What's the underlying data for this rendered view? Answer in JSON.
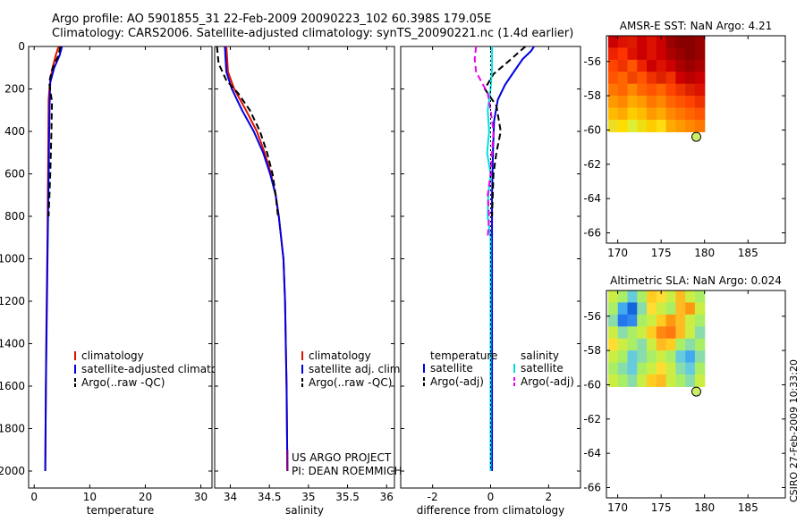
{
  "header": {
    "line1": "Argo profile: AO 5901855_31 22-Feb-2009 20090223_102 60.398S 179.05E",
    "line2": "Climatology: CARS2006. Satellite-adjusted climatology: synTS_20090221.nc (1.4d earlier)"
  },
  "credit": "CSIRO 27-Feb-2009 10:33:20",
  "colors": {
    "red": "#dd1100",
    "blue": "#0000e0",
    "black": "#000000",
    "cyan": "#00e0e0",
    "magenta": "#ee00ee",
    "purple": "#800080",
    "marker": "#ccee66"
  },
  "chart_data": [
    {
      "type": "line",
      "id": "temperature",
      "xlabel": "temperature",
      "xlim": [
        -1,
        32
      ],
      "ylim": [
        2080,
        0
      ],
      "xticks": [
        0,
        10,
        20,
        30
      ],
      "xtick_labels": [
        "0",
        "10",
        "20",
        "30"
      ],
      "yticks": [
        0,
        200,
        400,
        600,
        800,
        1000,
        1200,
        1400,
        1600,
        1800,
        2000
      ],
      "ytick_labels": [
        "0",
        "200",
        "400",
        "600",
        "800",
        "1000",
        "1200",
        "1400",
        "1600",
        "1800",
        "2000"
      ],
      "legend": [
        "climatology",
        "satellite-adjusted climatology",
        "Argo(..raw -QC)"
      ],
      "series": [
        {
          "name": "climatology",
          "color": "red",
          "style": "solid",
          "points": [
            [
              4.4,
              0
            ],
            [
              3.9,
              40
            ],
            [
              3.3,
              100
            ],
            [
              2.8,
              180
            ],
            [
              2.6,
              250
            ],
            [
              2.55,
              400
            ],
            [
              2.5,
              600
            ],
            [
              2.4,
              900
            ],
            [
              2.2,
              1300
            ],
            [
              2.1,
              1600
            ],
            [
              2.0,
              2000
            ]
          ]
        },
        {
          "name": "satellite-adjusted climatology",
          "color": "blue",
          "style": "solid",
          "points": [
            [
              5.0,
              0
            ],
            [
              4.6,
              40
            ],
            [
              3.6,
              100
            ],
            [
              2.9,
              170
            ],
            [
              2.8,
              250
            ],
            [
              2.7,
              400
            ],
            [
              2.6,
              600
            ],
            [
              2.45,
              900
            ],
            [
              2.25,
              1300
            ],
            [
              2.1,
              1600
            ],
            [
              2.0,
              2000
            ]
          ]
        },
        {
          "name": "Argo(..raw -QC)",
          "color": "black",
          "style": "dashed",
          "points": [
            [
              4.7,
              0
            ],
            [
              4.4,
              40
            ],
            [
              3.2,
              110
            ],
            [
              2.7,
              170
            ],
            [
              3.2,
              260
            ],
            [
              3.1,
              400
            ],
            [
              2.9,
              600
            ],
            [
              2.6,
              800
            ]
          ]
        }
      ]
    },
    {
      "type": "line",
      "id": "salinity",
      "xlabel": "salinity",
      "xlim": [
        33.8,
        36.1
      ],
      "ylim": [
        2080,
        0
      ],
      "xticks": [
        34,
        34.5,
        35,
        35.5,
        36
      ],
      "xtick_labels": [
        "34",
        "34.5",
        "35",
        "35.5",
        "36"
      ],
      "legend": [
        "climatology",
        "satellite adj. clim.",
        "Argo(..raw -QC)"
      ],
      "annotations": [
        "US ARGO PROJECT",
        "PI: DEAN ROEMMICH"
      ],
      "series": [
        {
          "name": "climatology",
          "color": "red",
          "style": "solid",
          "points": [
            [
              33.95,
              0
            ],
            [
              33.96,
              60
            ],
            [
              33.97,
              120
            ],
            [
              34.05,
              200
            ],
            [
              34.2,
              300
            ],
            [
              34.34,
              400
            ],
            [
              34.44,
              500
            ],
            [
              34.52,
              600
            ],
            [
              34.58,
              700
            ],
            [
              34.62,
              800
            ],
            [
              34.65,
              900
            ],
            [
              34.68,
              1000
            ],
            [
              34.7,
              1200
            ],
            [
              34.71,
              1400
            ],
            [
              34.72,
              1600
            ],
            [
              34.73,
              2000
            ]
          ]
        },
        {
          "name": "satellite adj. clim.",
          "color": "blue",
          "style": "solid",
          "points": [
            [
              33.93,
              0
            ],
            [
              33.94,
              60
            ],
            [
              33.95,
              120
            ],
            [
              34.02,
              200
            ],
            [
              34.15,
              300
            ],
            [
              34.3,
              400
            ],
            [
              34.42,
              500
            ],
            [
              34.51,
              600
            ],
            [
              34.58,
              700
            ],
            [
              34.62,
              800
            ],
            [
              34.65,
              900
            ],
            [
              34.68,
              1000
            ],
            [
              34.7,
              1200
            ],
            [
              34.71,
              1400
            ],
            [
              34.72,
              1600
            ],
            [
              34.73,
              2000
            ]
          ]
        },
        {
          "name": "Argo(..raw -QC)",
          "color": "black",
          "style": "dashed",
          "points": [
            [
              33.83,
              0
            ],
            [
              33.85,
              80
            ],
            [
              33.95,
              160
            ],
            [
              34.1,
              220
            ],
            [
              34.25,
              300
            ],
            [
              34.38,
              400
            ],
            [
              34.47,
              500
            ],
            [
              34.54,
              600
            ],
            [
              34.58,
              700
            ],
            [
              34.61,
              800
            ]
          ]
        },
        {
          "name": "Argo(-adj)",
          "color": "purple",
          "style": "solid",
          "points": [
            [
              34.73,
              1900
            ],
            [
              34.73,
              2000
            ]
          ]
        }
      ]
    },
    {
      "type": "line",
      "id": "difference",
      "xlabel": "difference from climatology",
      "xlim": [
        -3.1,
        3.1
      ],
      "ylim": [
        2080,
        0
      ],
      "xticks": [
        -2,
        0,
        2
      ],
      "xtick_labels": [
        "-2",
        "0",
        "2"
      ],
      "legend_temperature": {
        "title": "temperature",
        "items": [
          "satellite",
          "Argo(-adj)"
        ]
      },
      "legend_salinity": {
        "title": "salinity",
        "items": [
          "satellite",
          "Argo(-adj)"
        ]
      },
      "series": [
        {
          "name": "temperature satellite",
          "color": "blue",
          "style": "solid",
          "points": [
            [
              1.5,
              0
            ],
            [
              1.4,
              20
            ],
            [
              1.1,
              60
            ],
            [
              0.8,
              120
            ],
            [
              0.5,
              180
            ],
            [
              0.25,
              250
            ],
            [
              0.12,
              350
            ],
            [
              0.08,
              500
            ],
            [
              0.05,
              700
            ],
            [
              0.05,
              1000
            ],
            [
              0.05,
              1500
            ],
            [
              0.05,
              2000
            ]
          ]
        },
        {
          "name": "temperature Argo(-adj)",
          "color": "black",
          "style": "dashed",
          "points": [
            [
              1.2,
              0
            ],
            [
              0.7,
              60
            ],
            [
              0.1,
              130
            ],
            [
              -0.2,
              200
            ],
            [
              0.2,
              280
            ],
            [
              0.35,
              400
            ],
            [
              0.2,
              500
            ],
            [
              0.1,
              600
            ],
            [
              0.05,
              800
            ]
          ]
        },
        {
          "name": "salinity satellite",
          "color": "cyan",
          "style": "solid",
          "points": [
            [
              0.05,
              0
            ],
            [
              0.05,
              100
            ],
            [
              0.0,
              200
            ],
            [
              -0.1,
              300
            ],
            [
              -0.05,
              400
            ],
            [
              -0.12,
              500
            ],
            [
              0.0,
              600
            ],
            [
              -0.08,
              700
            ],
            [
              -0.1,
              800
            ],
            [
              0.0,
              900
            ],
            [
              0.0,
              1200
            ],
            [
              0.0,
              1600
            ],
            [
              0.0,
              2000
            ]
          ]
        },
        {
          "name": "salinity Argo(-adj)",
          "color": "magenta",
          "style": "dashed",
          "points": [
            [
              -0.5,
              0
            ],
            [
              -0.55,
              60
            ],
            [
              -0.5,
              120
            ],
            [
              -0.3,
              170
            ],
            [
              -0.1,
              220
            ],
            [
              0.0,
              300
            ],
            [
              0.1,
              400
            ],
            [
              0.05,
              500
            ],
            [
              0.0,
              600
            ],
            [
              -0.1,
              700
            ],
            [
              -0.05,
              800
            ],
            [
              -0.1,
              900
            ]
          ]
        },
        {
          "name": "zero line",
          "color": "black",
          "style": "dotted",
          "points": [
            [
              0,
              0
            ],
            [
              0,
              2000
            ]
          ]
        }
      ]
    },
    {
      "type": "heatmap",
      "id": "sst",
      "title": "AMSR-E SST: NaN Argo: 4.21",
      "xlim": [
        168.7,
        189.3
      ],
      "ylim": [
        -66.6,
        -54.5
      ],
      "xticks": [
        170,
        175,
        180,
        185
      ],
      "xtick_labels": [
        "170",
        "175",
        "180",
        "185"
      ],
      "yticks": [
        -56,
        -58,
        -60,
        -62,
        -64,
        -66
      ],
      "ytick_labels": [
        "-56",
        "-58",
        "-60",
        "-62",
        "-64",
        "-66"
      ],
      "image_extent": {
        "lon": [
          168.9,
          180.0
        ],
        "lat": [
          -60.1,
          -54.5
        ]
      },
      "float_position": {
        "lon": 179.05,
        "lat": -60.398
      },
      "grid": [
        [
          "#cc0000",
          "#dd1100",
          "#dd1a00",
          "#cc0000",
          "#dd1100",
          "#cc0000",
          "#990000",
          "#880000",
          "#880000",
          "#990000"
        ],
        [
          "#ee2200",
          "#ff3300",
          "#dd1100",
          "#cc0000",
          "#dd1100",
          "#cc0000",
          "#aa0000",
          "#990000",
          "#880000",
          "#990000"
        ],
        [
          "#ff4400",
          "#ee3300",
          "#ff5500",
          "#ee2200",
          "#cc0000",
          "#dd1100",
          "#cc0000",
          "#aa0000",
          "#990000",
          "#aa0000"
        ],
        [
          "#ff5500",
          "#ff6600",
          "#ee4400",
          "#ff5500",
          "#ee3300",
          "#dd2200",
          "#ee3300",
          "#cc0000",
          "#bb0000",
          "#cc0000"
        ],
        [
          "#ff7700",
          "#ff6600",
          "#ff8800",
          "#ff6600",
          "#ff5500",
          "#ff6600",
          "#ff4400",
          "#ee3300",
          "#dd2200",
          "#dd1100"
        ],
        [
          "#ff9900",
          "#ff8800",
          "#ffaa00",
          "#ff9900",
          "#ff7700",
          "#ff8800",
          "#ff6600",
          "#ff5500",
          "#ff4400",
          "#ee3300"
        ],
        [
          "#ffbb00",
          "#ffaa00",
          "#ffcc00",
          "#ffbb00",
          "#ff9900",
          "#ffaa00",
          "#ff8800",
          "#ff7700",
          "#ff6600",
          "#ff5500"
        ],
        [
          "#eedd22",
          "#ffdd00",
          "#ddee33",
          "#eedd11",
          "#ffcc00",
          "#ffdd11",
          "#ffaa00",
          "#ff9900",
          "#ff8800",
          "#ff7700"
        ]
      ]
    },
    {
      "type": "heatmap",
      "id": "sla",
      "title": "Altimetric SLA: NaN Argo: 0.024",
      "xlim": [
        168.7,
        189.3
      ],
      "ylim": [
        -66.6,
        -54.5
      ],
      "xticks": [
        170,
        175,
        180,
        185
      ],
      "xtick_labels": [
        "170",
        "175",
        "180",
        "185"
      ],
      "yticks": [
        -56,
        -58,
        -60,
        -62,
        -64,
        -66
      ],
      "ytick_labels": [
        "-56",
        "-58",
        "-60",
        "-62",
        "-64",
        "-66"
      ],
      "image_extent": {
        "lon": [
          168.9,
          180.0
        ],
        "lat": [
          -60.1,
          -54.5
        ]
      },
      "float_position": {
        "lon": 179.05,
        "lat": -60.398
      },
      "grid": [
        [
          "#ccee44",
          "#aaee66",
          "#66ccdd",
          "#aaee66",
          "#ffcc22",
          "#ffdd33",
          "#ccee44",
          "#ffbb22",
          "#ccee44",
          "#aaee66"
        ],
        [
          "#aaee66",
          "#44aaee",
          "#1166dd",
          "#88ddaa",
          "#ffdd33",
          "#ccee44",
          "#aaee66",
          "#ffbb22",
          "#ff9911",
          "#ccee44"
        ],
        [
          "#88ddaa",
          "#2277ee",
          "#3388ee",
          "#aaee66",
          "#ccee44",
          "#ffcc22",
          "#ff9911",
          "#ffbb22",
          "#ccee44",
          "#aaee66"
        ],
        [
          "#ccee44",
          "#88ddaa",
          "#aaee66",
          "#ccee44",
          "#ffcc22",
          "#ff8811",
          "#ff7711",
          "#ffbb22",
          "#ccee44",
          "#88ddaa"
        ],
        [
          "#ffdd33",
          "#ccee44",
          "#aaee66",
          "#88ddaa",
          "#ccee44",
          "#ffbb22",
          "#ffcc22",
          "#aaee66",
          "#88ddaa",
          "#aaee66"
        ],
        [
          "#ccee44",
          "#aaee66",
          "#66ccdd",
          "#88ddaa",
          "#aaee66",
          "#ccee44",
          "#aaee66",
          "#66ccdd",
          "#44aaee",
          "#88ddaa"
        ],
        [
          "#aaee66",
          "#88ddaa",
          "#66ccdd",
          "#aaee66",
          "#ccee44",
          "#ffdd33",
          "#ccee44",
          "#88ddaa",
          "#66ccdd",
          "#aaee66"
        ],
        [
          "#ccee44",
          "#aaee66",
          "#88ddaa",
          "#ccee44",
          "#ffcc22",
          "#ffbb22",
          "#ccee44",
          "#aaee66",
          "#88ddaa",
          "#ccee44"
        ]
      ]
    }
  ]
}
